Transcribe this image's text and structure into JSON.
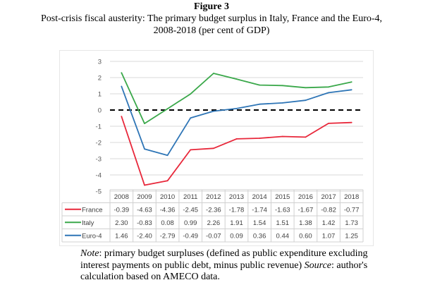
{
  "figure": {
    "label": "Figure 3",
    "subtitle_line1": "Post-crisis fiscal austerity: The primary budget surplus in Italy, France and the Euro-4,",
    "subtitle_line2": "2008-2018  (per cent of GDP)"
  },
  "note": {
    "note_label": "Note",
    "note_text": ": primary budget surpluses (defined as public expenditure excluding interest payments on public debt, minus public revenue) ",
    "source_label": "Source",
    "source_text": ": author's calculation based on AMECO data."
  },
  "chart_data": {
    "type": "line",
    "title": "Post-crisis fiscal austerity: The primary budget surplus in Italy, France and the Euro-4, 2008-2018 (per cent of GDP)",
    "xlabel": "",
    "ylabel": "",
    "categories": [
      "2008",
      "2009",
      "2010",
      "2011",
      "2012",
      "2013",
      "2014",
      "2015",
      "2016",
      "2017",
      "2018"
    ],
    "ylim": [
      -5,
      3
    ],
    "yticks": [
      "3",
      "2",
      "1",
      "0",
      "-1",
      "-2",
      "-3",
      "-4",
      "-5"
    ],
    "grid": true,
    "reference_line": {
      "value": 0,
      "style": "dashed",
      "color": "#000000"
    },
    "legend": "data-table-below",
    "series": [
      {
        "name": "France",
        "color": "#e8273a",
        "values": [
          -0.39,
          -4.63,
          -4.36,
          -2.45,
          -2.36,
          -1.78,
          -1.74,
          -1.63,
          -1.67,
          -0.82,
          -0.77
        ],
        "labels": [
          "-0.39",
          "-4.63",
          "-4.36",
          "-2.45",
          "-2.36",
          "-1.78",
          "-1.74",
          "-1.63",
          "-1.67",
          "-0.82",
          "-0.77"
        ]
      },
      {
        "name": "Italy",
        "color": "#3aa84a",
        "values": [
          2.3,
          -0.83,
          0.08,
          0.99,
          2.26,
          1.91,
          1.54,
          1.51,
          1.38,
          1.42,
          1.73
        ],
        "labels": [
          "2.30",
          "-0.83",
          "0.08",
          "0.99",
          "2.26",
          "1.91",
          "1.54",
          "1.51",
          "1.38",
          "1.42",
          "1.73"
        ]
      },
      {
        "name": "Euro-4",
        "color": "#2e75b6",
        "values": [
          1.46,
          -2.4,
          -2.79,
          -0.49,
          -0.07,
          0.09,
          0.36,
          0.44,
          0.6,
          1.07,
          1.25
        ],
        "labels": [
          "1.46",
          "-2.40",
          "-2.79",
          "-0.49",
          "-0.07",
          "0.09",
          "0.36",
          "0.44",
          "0.60",
          "1.07",
          "1.25"
        ]
      }
    ]
  }
}
